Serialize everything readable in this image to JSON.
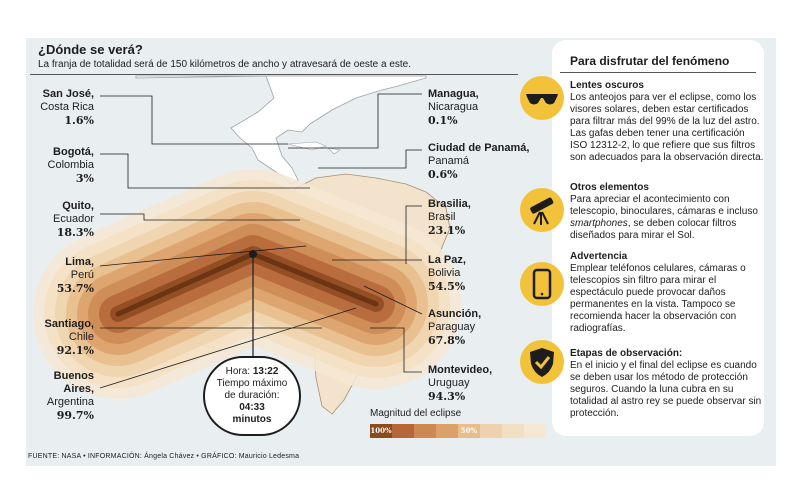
{
  "header": {
    "title": "¿Dónde se verá?",
    "subtitle": "La franja de totalidad será de 150 kilómetros de ancho y atravesará de oeste a este."
  },
  "cities": [
    {
      "id": "san-jose",
      "name": "San José,",
      "country": "Costa Rica",
      "pct": "1.6%"
    },
    {
      "id": "bogota",
      "name": "Bogotá,",
      "country": "Colombia",
      "pct": "3%"
    },
    {
      "id": "quito",
      "name": "Quito,",
      "country": "Ecuador",
      "pct": "18.3%"
    },
    {
      "id": "lima",
      "name": "Lima,",
      "country": "Perú",
      "pct": "53.7%"
    },
    {
      "id": "santiago",
      "name": "Santiago,",
      "country": "Chile",
      "pct": "92.1%"
    },
    {
      "id": "buenos-aires",
      "name": "Buenos",
      "name2": "Aires,",
      "country": "Argentina",
      "pct": "99.7%"
    },
    {
      "id": "managua",
      "name": "Managua,",
      "country": "Nicaragua",
      "pct": "0.1%"
    },
    {
      "id": "panama",
      "name": "Ciudad de Panamá,",
      "country": "Panamá",
      "pct": "0.6%"
    },
    {
      "id": "brasilia",
      "name": "Brasilia,",
      "country": "Brasil",
      "pct": "23.1%"
    },
    {
      "id": "la-paz",
      "name": "La Paz,",
      "country": "Bolivia",
      "pct": "54.5%"
    },
    {
      "id": "asuncion",
      "name": "Asunción,",
      "country": "Paraguay",
      "pct": "67.8%"
    },
    {
      "id": "montevideo",
      "name": "Montevideo,",
      "country": "Uruguay",
      "pct": "94.3%"
    }
  ],
  "time_box": {
    "hora_label": "Hora:",
    "hora": "13:22",
    "line2": "Tiempo máximo",
    "line3": "de duración:",
    "duration": "04:33",
    "unit": "minutos"
  },
  "legend": {
    "title": "Magnitud del eclipse",
    "label_100": "100%",
    "label_50": "50%",
    "colors": [
      "#8c4a1f",
      "#b5673a",
      "#cc8a52",
      "#dca06a",
      "#e8bd8c",
      "#efd2ad",
      "#f3dfc3",
      "#f6e8d4"
    ]
  },
  "panel": {
    "title": "Para disfrutar del fenómeno",
    "sections": [
      {
        "id": "lentes",
        "icon": "sunglasses-icon",
        "head": "Lentes oscuros",
        "body": "Los anteojos para ver el eclipse, como los visores solares, deben estar certificados para filtrar más del 99% de la luz del astro. Las gafas deben tener una certificación ISO 12312-2, lo que refiere que sus filtros son adecuados para la observación directa."
      },
      {
        "id": "otros",
        "icon": "telescope-icon",
        "head": "Otros elementos",
        "body_a": "Para apreciar el acontecimiento con telescopio, binoculares, cámaras e incluso ",
        "body_em": "smartphones",
        "body_b": ", se deben colocar filtros diseñados para mirar el Sol."
      },
      {
        "id": "advertencia",
        "icon": "smartphone-icon",
        "head": "Advertencia",
        "body": "Emplear teléfonos celulares, cámaras o telescopios sin filtro para mirar el espectáculo puede provocar daños permanentes en la vista. Tampoco se recomienda hacer la observación con radiografías."
      },
      {
        "id": "etapas",
        "icon": "shield-check-icon",
        "head": "Etapas de observación:",
        "body": "En el inicio y el final del eclipse es cuando se deben usar los método de protección seguros. Cuando la luna cubra en su totalidad al astro rey se puede observar sin protección."
      }
    ]
  },
  "footer": "FUENTE: NASA • INFORMACIÓN: Ángela Chávez • GRÁFICO: Mauricio Ledesma"
}
